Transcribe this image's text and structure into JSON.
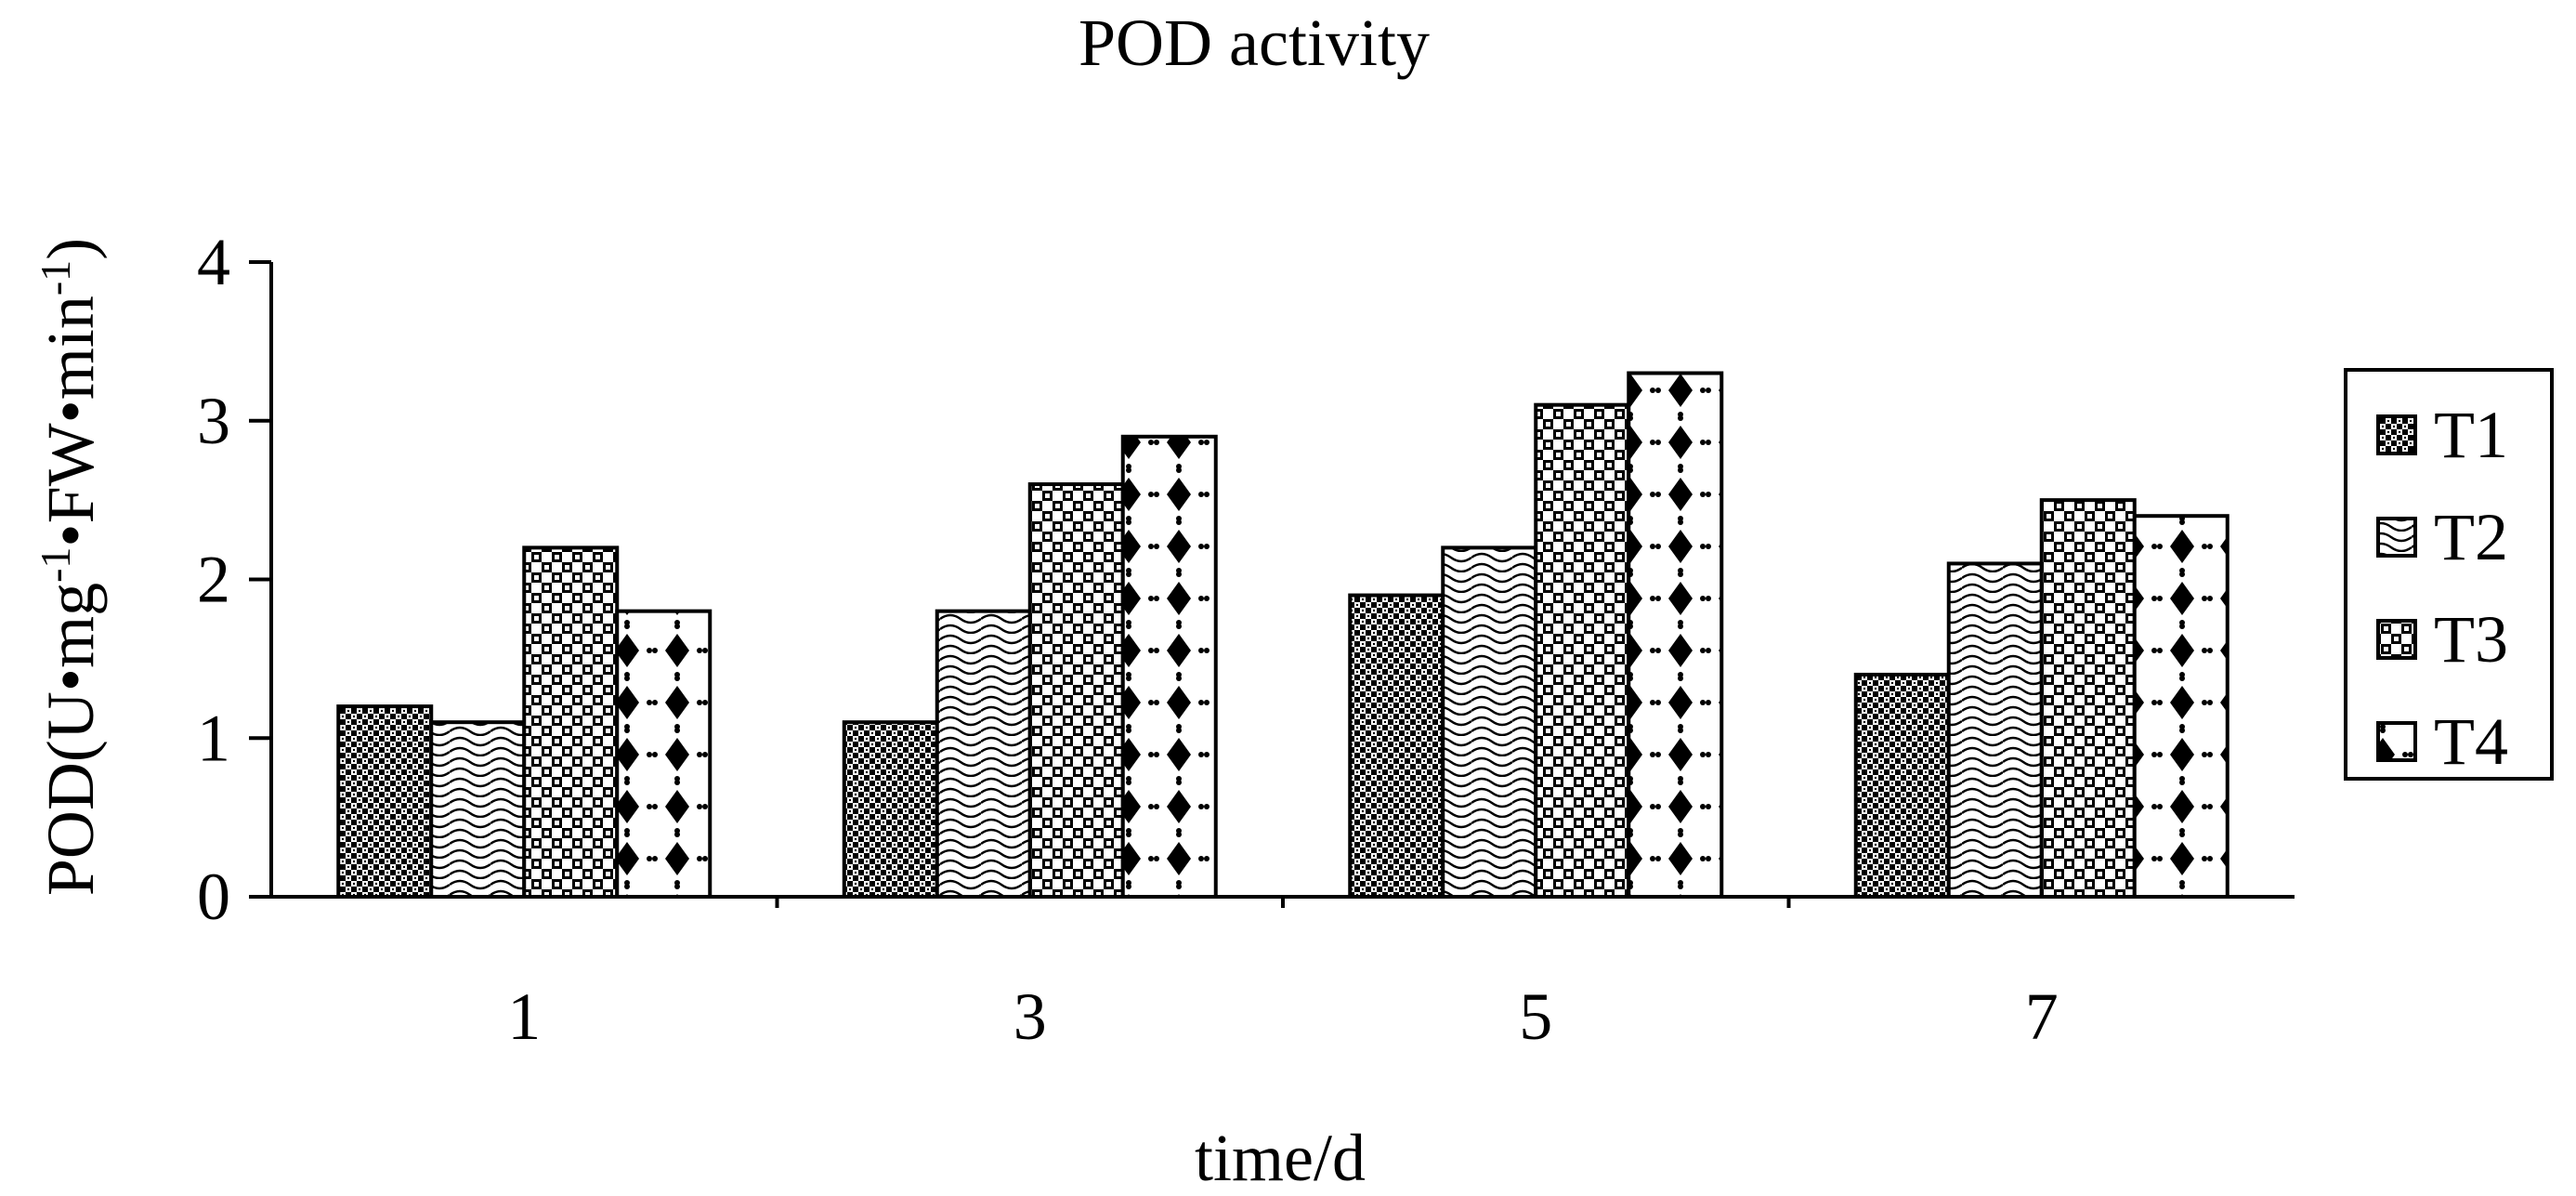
{
  "chart_data": {
    "type": "bar",
    "title": "POD activity",
    "xlabel": "time/d",
    "ylabel": {
      "parts": [
        {
          "text": "POD(U•mg",
          "sup": false
        },
        {
          "text": "-1",
          "sup": true
        },
        {
          "text": "•FW•min",
          "sup": false
        },
        {
          "text": "-1",
          "sup": true
        },
        {
          "text": ")",
          "sup": false
        }
      ]
    },
    "categories": [
      "1",
      "3",
      "5",
      "7"
    ],
    "ylim": [
      0,
      4
    ],
    "yticks": [
      "0",
      "1",
      "2",
      "3",
      "4"
    ],
    "grid": false,
    "legend_position": "right",
    "series": [
      {
        "name": "T1",
        "pattern": "fine-check",
        "values": [
          1.2,
          1.1,
          1.9,
          1.4
        ]
      },
      {
        "name": "T2",
        "pattern": "wave",
        "values": [
          1.1,
          1.8,
          2.2,
          2.1
        ]
      },
      {
        "name": "T3",
        "pattern": "checkerboard",
        "values": [
          2.2,
          2.6,
          3.1,
          2.5
        ]
      },
      {
        "name": "T4",
        "pattern": "diamond-dots",
        "values": [
          1.8,
          2.9,
          3.3,
          2.4
        ]
      }
    ],
    "colors": {
      "stroke": "#000000",
      "fill": "#ffffff"
    }
  }
}
